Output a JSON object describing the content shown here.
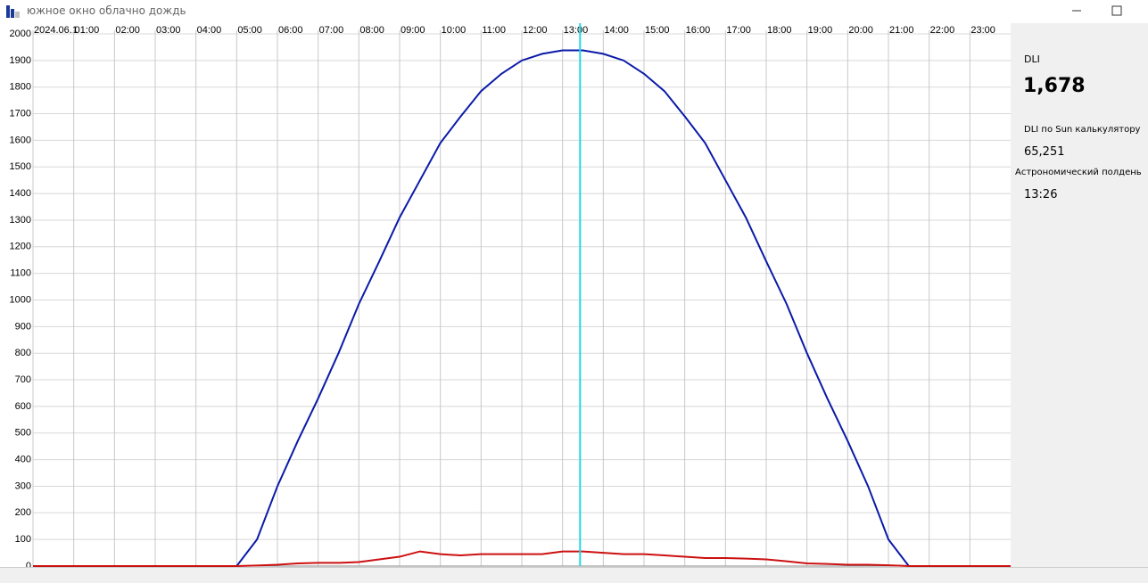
{
  "window": {
    "title": "южное окно  облачно дождь"
  },
  "sidebar": {
    "dli_label": "DLI",
    "dli_value": "1,678",
    "sun_label": "DLI по Sun калькулятору",
    "sun_value": "65,251",
    "noon_label": "Астрономический полдень",
    "noon_value": "13:26"
  },
  "chart_data": {
    "type": "line",
    "x": [
      0,
      0.5,
      1,
      1.5,
      2,
      2.5,
      3,
      3.5,
      4,
      4.5,
      5,
      5.5,
      6,
      6.5,
      7,
      7.5,
      8,
      8.5,
      9,
      9.5,
      10,
      10.5,
      11,
      11.5,
      12,
      12.5,
      13,
      13.5,
      14,
      14.5,
      15,
      15.5,
      16,
      16.5,
      17,
      17.5,
      18,
      18.5,
      19,
      19.5,
      20,
      20.5,
      21,
      21.5,
      22,
      22.5,
      23,
      23.5,
      24
    ],
    "series": [
      {
        "color": "#0a1aa8",
        "values": [
          0,
          0,
          0,
          0,
          0,
          0,
          0,
          0,
          0,
          0,
          0,
          100,
          300,
          470,
          630,
          800,
          985,
          1145,
          1310,
          1450,
          1590,
          1690,
          1785,
          1850,
          1900,
          1925,
          1938,
          1938,
          1925,
          1900,
          1850,
          1785,
          1690,
          1590,
          1450,
          1310,
          1145,
          985,
          800,
          630,
          470,
          300,
          100,
          0,
          0,
          0,
          0,
          0,
          0
        ]
      },
      {
        "color": "#cc1010",
        "values": [
          0,
          0,
          0,
          0,
          0,
          0,
          0,
          0,
          0,
          0,
          0,
          2,
          5,
          10,
          12,
          12,
          15,
          25,
          35,
          55,
          45,
          40,
          45,
          45,
          45,
          45,
          55,
          55,
          50,
          45,
          45,
          40,
          35,
          30,
          30,
          28,
          25,
          18,
          10,
          8,
          5,
          5,
          3,
          0,
          0,
          0,
          0,
          0,
          0
        ]
      }
    ],
    "marker_x": 13.43,
    "marker_color": "#22d8e8",
    "xlim": [
      0,
      24
    ],
    "xticks": [
      {
        "value": 0,
        "label": "2024.06.1"
      },
      {
        "value": 1,
        "label": "01:00"
      },
      {
        "value": 2,
        "label": "02:00"
      },
      {
        "value": 3,
        "label": "03:00"
      },
      {
        "value": 4,
        "label": "04:00"
      },
      {
        "value": 5,
        "label": "05:00"
      },
      {
        "value": 6,
        "label": "06:00"
      },
      {
        "value": 7,
        "label": "07:00"
      },
      {
        "value": 8,
        "label": "08:00"
      },
      {
        "value": 9,
        "label": "09:00"
      },
      {
        "value": 10,
        "label": "10:00"
      },
      {
        "value": 11,
        "label": "11:00"
      },
      {
        "value": 12,
        "label": "12:00"
      },
      {
        "value": 13,
        "label": "13:00"
      },
      {
        "value": 14,
        "label": "14:00"
      },
      {
        "value": 15,
        "label": "15:00"
      },
      {
        "value": 16,
        "label": "16:00"
      },
      {
        "value": 17,
        "label": "17:00"
      },
      {
        "value": 18,
        "label": "18:00"
      },
      {
        "value": 19,
        "label": "19:00"
      },
      {
        "value": 20,
        "label": "20:00"
      },
      {
        "value": 21,
        "label": "21:00"
      },
      {
        "value": 22,
        "label": "22:00"
      },
      {
        "value": 23,
        "label": "23:00"
      }
    ],
    "ylim": [
      0,
      2000
    ],
    "yticks": [
      0,
      100,
      200,
      300,
      400,
      500,
      600,
      700,
      800,
      900,
      1000,
      1100,
      1200,
      1300,
      1400,
      1500,
      1600,
      1700,
      1800,
      1900,
      2000
    ],
    "grid": true
  }
}
